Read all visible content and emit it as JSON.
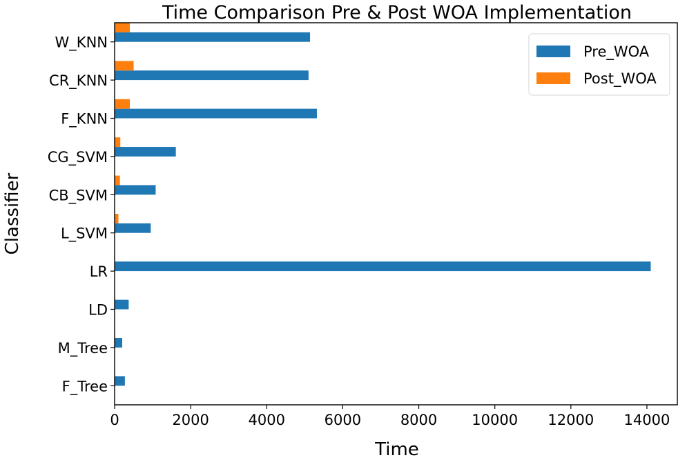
{
  "chart_data": {
    "type": "bar",
    "orientation": "horizontal",
    "title": "Time Comparison Pre & Post WOA Implementation",
    "xlabel": "Time",
    "ylabel": "Classifier",
    "categories": [
      "F_Tree",
      "M_Tree",
      "LD",
      "LR",
      "L_SVM",
      "CB_SVM",
      "CG_SVM",
      "F_KNN",
      "CR_KNN",
      "W_KNN"
    ],
    "series": [
      {
        "name": "Pre_WOA",
        "color": "#1f77b4",
        "values": [
          270,
          200,
          370,
          14100,
          950,
          1080,
          1610,
          5320,
          5100,
          5140
        ]
      },
      {
        "name": "Post_WOA",
        "color": "#ff7f0e",
        "values": [
          10,
          10,
          10,
          10,
          100,
          140,
          150,
          400,
          500,
          400
        ]
      }
    ],
    "xlim": [
      0,
      14800
    ],
    "xticks": [
      0,
      2000,
      4000,
      6000,
      8000,
      10000,
      12000,
      14000
    ],
    "grid": false,
    "legend": "top-right"
  }
}
